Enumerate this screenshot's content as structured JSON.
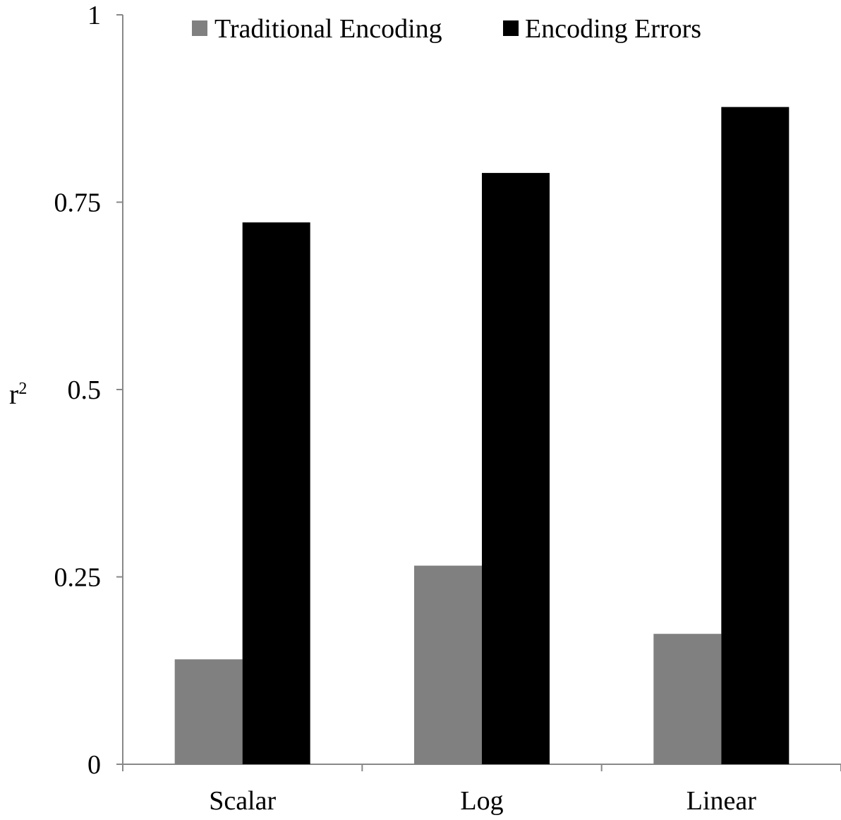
{
  "chart_data": {
    "type": "bar",
    "title": "",
    "xlabel": "",
    "ylabel": "r",
    "ylabel_superscript": "2",
    "categories": [
      "Scalar",
      "Log",
      "Linear"
    ],
    "series": [
      {
        "name": "Traditional Encoding",
        "values": [
          0.14,
          0.265,
          0.174
        ],
        "color": "#808080"
      },
      {
        "name": "Encoding Errors",
        "values": [
          0.723,
          0.789,
          0.877
        ],
        "color": "#000000"
      }
    ],
    "ylim": [
      0,
      1
    ],
    "yticks": [
      {
        "value": 0,
        "label": "0"
      },
      {
        "value": 0.25,
        "label": "0.25"
      },
      {
        "value": 0.5,
        "label": "0.5"
      },
      {
        "value": 0.75,
        "label": "0.75"
      },
      {
        "value": 1,
        "label": "1"
      }
    ],
    "grid": false,
    "legend_position": "top",
    "axis_color": "#888888"
  }
}
